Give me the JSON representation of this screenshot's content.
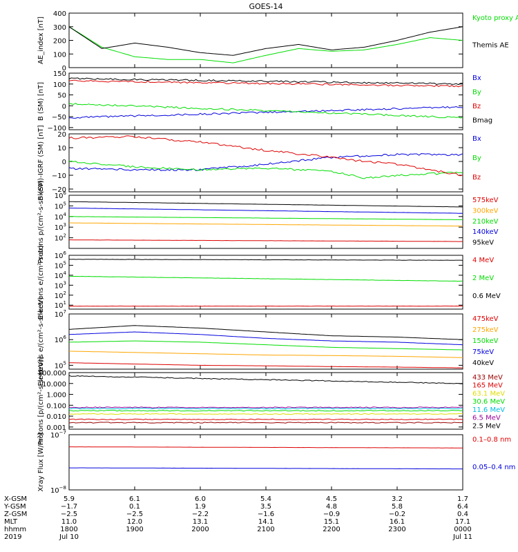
{
  "title": "GOES-14",
  "colors": {
    "black": "#000000",
    "red": "#dd0000",
    "green": "#00dd00",
    "blue": "#0000dd",
    "orange": "#ffa500",
    "cyan": "#00bbdd",
    "yellow": "#dddd00",
    "purple": "#990099",
    "darkred": "#990000"
  },
  "chart_data": [
    {
      "type": "line",
      "ylabel": "AE_index [nT]",
      "ylim": [
        0,
        400
      ],
      "ticks": [
        "0",
        "100",
        "200",
        "300",
        "400"
      ],
      "tick_values": [
        0,
        100,
        200,
        300,
        400
      ],
      "x": [
        0,
        0.5,
        1,
        1.5,
        2,
        2.5,
        3,
        3.5,
        4,
        4.5,
        5,
        5.5,
        6
      ],
      "series": [
        {
          "name": "Kyoto proxy AE",
          "color": "#00dd00",
          "values": [
            300,
            150,
            80,
            60,
            60,
            35,
            90,
            140,
            120,
            130,
            170,
            220,
            200
          ]
        },
        {
          "name": "Themis AE",
          "color": "#000000",
          "values": [
            300,
            140,
            180,
            150,
            110,
            90,
            140,
            170,
            130,
            150,
            200,
            260,
            300
          ]
        }
      ]
    },
    {
      "type": "line",
      "ylabel": "B (SM) [nT]",
      "ylim": [
        -110,
        150
      ],
      "ticks": [
        "150",
        "100",
        "50",
        "0",
        "−50",
        "−100"
      ],
      "tick_values": [
        150,
        100,
        50,
        0,
        -50,
        -100
      ],
      "x": [
        0,
        6
      ],
      "series": [
        {
          "name": "Bx",
          "color": "#0000dd",
          "values": [
            -55,
            -5
          ]
        },
        {
          "name": "By",
          "color": "#00dd00",
          "values": [
            10,
            -55
          ]
        },
        {
          "name": "Bz",
          "color": "#dd0000",
          "values": [
            115,
            90
          ]
        },
        {
          "name": "Bmag",
          "color": "#000000",
          "values": [
            125,
            100
          ]
        }
      ]
    },
    {
      "type": "line",
      "ylabel": "B (SM)-IGRF (SM) [nT]",
      "ylim": [
        -22,
        20
      ],
      "ticks": [
        "20",
        "10",
        "0",
        "−10",
        "−20"
      ],
      "tick_values": [
        20,
        10,
        0,
        -10,
        -20
      ],
      "x": [
        0,
        1,
        2,
        3,
        4,
        4.5,
        5,
        6
      ],
      "series": [
        {
          "name": "Bx",
          "color": "#0000dd",
          "values": [
            -5,
            -6,
            -6,
            -2,
            3,
            4,
            5,
            5
          ]
        },
        {
          "name": "By",
          "color": "#00dd00",
          "values": [
            0,
            -4,
            -6,
            -5,
            -7,
            -12,
            -10,
            -8
          ]
        },
        {
          "name": "Bz",
          "color": "#dd0000",
          "values": [
            17,
            18,
            14,
            8,
            3,
            0,
            -2,
            -10
          ]
        }
      ]
    },
    {
      "type": "line",
      "ylabel": "Protons p/(cm²-s-sr-keV)",
      "yscale": "log",
      "ylim": [
        1,
        6
      ],
      "ticks": [
        "10",
        "10",
        "10",
        "10",
        "10"
      ],
      "tick_exponents": [
        "2",
        "3",
        "4",
        "5",
        "6"
      ],
      "tick_values": [
        2,
        3,
        4,
        5,
        6
      ],
      "x": [
        0,
        6
      ],
      "series": [
        {
          "name": "575keV",
          "color": "#dd0000",
          "values": [
            1.8,
            1.65
          ]
        },
        {
          "name": "300keV",
          "color": "#ffa500",
          "values": [
            3.4,
            3.1
          ]
        },
        {
          "name": "210keV",
          "color": "#00dd00",
          "values": [
            4.0,
            3.7
          ]
        },
        {
          "name": "140keV",
          "color": "#0000dd",
          "values": [
            4.8,
            4.3
          ]
        },
        {
          "name": "95keV",
          "color": "#000000",
          "values": [
            5.4,
            4.9
          ]
        }
      ]
    },
    {
      "type": "line",
      "ylabel": "Electrons e/(cm²-s-sr)",
      "yscale": "log",
      "ylim": [
        0.6,
        6
      ],
      "ticks": [
        "10",
        "10",
        "10",
        "10",
        "10",
        "10"
      ],
      "tick_exponents": [
        "1",
        "2",
        "3",
        "4",
        "5",
        "6"
      ],
      "tick_values": [
        1,
        2,
        3,
        4,
        5,
        6
      ],
      "x": [
        0,
        6
      ],
      "series": [
        {
          "name": "4 MeV",
          "color": "#dd0000",
          "values": [
            0.9,
            0.9
          ]
        },
        {
          "name": "2 MeV",
          "color": "#00dd00",
          "values": [
            3.9,
            3.4
          ]
        },
        {
          "name": "0.6 MeV",
          "color": "#000000",
          "values": [
            5.6,
            5.5
          ]
        }
      ]
    },
    {
      "type": "line",
      "ylabel": "Electrons e/(cm²-s-sr-keV)",
      "yscale": "log",
      "ylim": [
        4.85,
        7.0
      ],
      "ticks": [
        "10",
        "10",
        "10"
      ],
      "tick_exponents": [
        "5",
        "6",
        "7"
      ],
      "tick_values": [
        5,
        6,
        7
      ],
      "x": [
        0,
        1,
        2,
        3,
        4,
        5,
        6
      ],
      "series": [
        {
          "name": "475keV",
          "color": "#dd0000",
          "values": [
            5.1,
            5.05,
            5.0,
            4.98,
            4.95,
            4.93,
            4.9
          ]
        },
        {
          "name": "275keV",
          "color": "#ffa500",
          "values": [
            5.55,
            5.5,
            5.45,
            5.4,
            5.38,
            5.35,
            5.3
          ]
        },
        {
          "name": "150keV",
          "color": "#00dd00",
          "values": [
            5.9,
            5.95,
            5.9,
            5.8,
            5.7,
            5.65,
            5.6
          ]
        },
        {
          "name": "75keV",
          "color": "#0000dd",
          "values": [
            6.2,
            6.3,
            6.2,
            6.05,
            5.95,
            5.9,
            5.8
          ]
        },
        {
          "name": "40keV",
          "color": "#000000",
          "values": [
            6.4,
            6.55,
            6.45,
            6.3,
            6.15,
            6.1,
            6.0
          ]
        }
      ]
    },
    {
      "type": "line",
      "ylabel": "Protons [p/(cm²-s-sr-keV)]",
      "yscale": "log",
      "ylim": [
        -3.2,
        2
      ],
      "ticks": [
        "100.000",
        "10.000",
        "1.000",
        "0.100",
        "0.010",
        "0.001"
      ],
      "tick_values": [
        2,
        1,
        0,
        -1,
        -2,
        -3
      ],
      "x": [
        0,
        6
      ],
      "series": [
        {
          "name": "433 MeV",
          "color": "#990000",
          "values": [
            -2.6,
            -2.6
          ]
        },
        {
          "name": "165 MeV",
          "color": "#dd0000",
          "values": [
            -2.3,
            -2.3
          ]
        },
        {
          "name": "63.1 MeV",
          "color": "#dddd00",
          "values": [
            -1.8,
            -1.8
          ]
        },
        {
          "name": "30.6 MeV",
          "color": "#00dd00",
          "values": [
            -1.5,
            -1.5
          ]
        },
        {
          "name": "11.6 MeV",
          "color": "#00bbdd",
          "values": [
            -1.3,
            -1.3
          ]
        },
        {
          "name": "6.5 MeV",
          "color": "#990099",
          "values": [
            -1.2,
            -1.2
          ]
        },
        {
          "name": "2.5 MeV",
          "color": "#000000",
          "values": [
            1.7,
            1.0
          ]
        }
      ]
    },
    {
      "type": "line",
      "ylabel": "Xray Flux [W/m²]",
      "yscale": "log",
      "ylim": [
        -8,
        -7
      ],
      "ticks": [
        "10",
        "10"
      ],
      "tick_exponents": [
        "−7",
        "−8"
      ],
      "tick_values": [
        -7,
        -8
      ],
      "x": [
        0,
        6
      ],
      "series": [
        {
          "name": "0.1–0.8 nm",
          "color": "#dd0000",
          "values": [
            -7.22,
            -7.24
          ]
        },
        {
          "name": "0.05–0.4 nm",
          "color": "#0000dd",
          "values": [
            -7.6,
            -7.62
          ]
        }
      ]
    }
  ],
  "axis_rows": [
    {
      "label": "X-GSM",
      "values": [
        "5.9",
        "6.1",
        "6.0",
        "5.4",
        "4.5",
        "3.2",
        "1.7"
      ]
    },
    {
      "label": "Y-GSM",
      "values": [
        "−1.7",
        "0.1",
        "1.9",
        "3.5",
        "4.8",
        "5.8",
        "6.4"
      ]
    },
    {
      "label": "Z-GSM",
      "values": [
        "−2.5",
        "−2.5",
        "−2.2",
        "−1.6",
        "−0.9",
        "−0.2",
        "0.4"
      ]
    },
    {
      "label": "MLT",
      "values": [
        "11.0",
        "12.0",
        "13.1",
        "14.1",
        "15.1",
        "16.1",
        "17.1"
      ]
    },
    {
      "label": "hhmm",
      "values": [
        "1800",
        "1900",
        "2000",
        "2100",
        "2200",
        "2300",
        "0000"
      ]
    },
    {
      "label": "2019",
      "values": [
        "Jul 10",
        "",
        "",
        "",
        "",
        "",
        "Jul 11"
      ]
    }
  ]
}
